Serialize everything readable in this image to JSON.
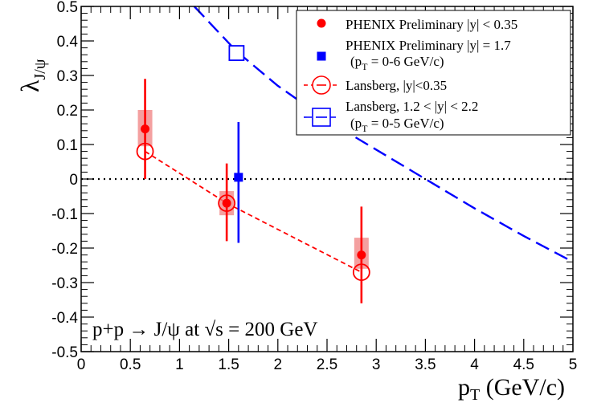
{
  "chart_data": {
    "type": "scatter",
    "title": "",
    "xlabel": {
      "main": "p",
      "sub": "T",
      "unit": " (GeV/c)"
    },
    "ylabel": {
      "main": "λ",
      "sub": "J/ψ"
    },
    "xlim": [
      0,
      5
    ],
    "ylim": [
      -0.5,
      0.5
    ],
    "x_ticks": [
      0,
      0.5,
      1,
      1.5,
      2,
      2.5,
      3,
      3.5,
      4,
      4.5,
      5
    ],
    "x_tick_labels": [
      "0",
      "0.5",
      "1",
      "1.5",
      "2",
      "2.5",
      "3",
      "3.5",
      "4",
      "4.5",
      "5"
    ],
    "y_ticks": [
      -0.5,
      -0.4,
      -0.3,
      -0.2,
      -0.1,
      0,
      0.1,
      0.2,
      0.3,
      0.4,
      0.5
    ],
    "y_tick_labels": [
      "-0.5",
      "-0.4",
      "-0.3",
      "-0.2",
      "-0.1",
      "0",
      "0.1",
      "0.2",
      "0.3",
      "0.4",
      "0.5"
    ],
    "zero_line": {
      "y": 0,
      "style": "dotted"
    },
    "annotation": "p+p → J/ψ at √s = 200 GeV",
    "colors": {
      "red": "#ff0000",
      "blue": "#0000ff",
      "band": "#f08080",
      "black": "#000000"
    },
    "series": [
      {
        "name": "PHENIX Preliminary |y| < 0.35",
        "marker": "filled-circle",
        "color": "#ff0000",
        "points": [
          {
            "x": 0.65,
            "y": 0.145,
            "stat_lo": 0.0,
            "stat_hi": 0.29,
            "sys_lo": 0.095,
            "sys_hi": 0.2
          },
          {
            "x": 1.48,
            "y": -0.07,
            "stat_lo": -0.18,
            "stat_hi": 0.045,
            "sys_lo": -0.105,
            "sys_hi": -0.035
          },
          {
            "x": 2.85,
            "y": -0.22,
            "stat_lo": -0.36,
            "stat_hi": -0.08,
            "sys_lo": -0.26,
            "sys_hi": -0.17
          }
        ]
      },
      {
        "name": "PHENIX Preliminary |y| = 1.7",
        "name_extra": "(p_T = 0-6 GeV/c)",
        "marker": "filled-square",
        "color": "#0000ff",
        "points": [
          {
            "x": 1.6,
            "y": 0.005,
            "stat_lo": -0.185,
            "stat_hi": 0.165
          }
        ]
      },
      {
        "name": "Lansberg, |y|<0.35",
        "marker": "open-circle",
        "color": "#ff0000",
        "line": "short-dash",
        "x": [
          0.65,
          1.48,
          2.85
        ],
        "y": [
          0.08,
          -0.07,
          -0.27
        ]
      },
      {
        "name": "Lansberg, 1.2 < |y| < 2.2",
        "name_extra": "(p_T = 0-5 GeV/c)",
        "marker": "open-square",
        "marker_points": [
          {
            "x": 1.58,
            "y": 0.365
          }
        ],
        "color": "#0000ff",
        "line": "long-dash",
        "x": [
          1.15,
          1.58,
          2.0,
          2.5,
          3.0,
          3.5,
          4.0,
          4.5,
          5.0
        ],
        "y": [
          0.5,
          0.37,
          0.27,
          0.17,
          0.085,
          0.0,
          -0.085,
          -0.165,
          -0.24
        ]
      }
    ],
    "legend": {
      "position": "top-right",
      "entries": [
        {
          "label": "PHENIX Preliminary |y| < 0.35",
          "symbol": "filled-circle",
          "color": "#ff0000"
        },
        {
          "label": "PHENIX Preliminary |y| = 1.7",
          "sub": "(p",
          "sub_T": "T",
          "sub_rest": " = 0-6 GeV/c)",
          "symbol": "filled-square",
          "color": "#0000ff"
        },
        {
          "label": "Lansberg, |y|<0.35",
          "symbol": "open-circle-line",
          "color": "#ff0000"
        },
        {
          "label": "Lansberg, 1.2 < |y| < 2.2",
          "sub": "(p",
          "sub_T": "T",
          "sub_rest": " = 0-5 GeV/c)",
          "symbol": "open-square-line",
          "color": "#0000ff"
        }
      ]
    }
  }
}
